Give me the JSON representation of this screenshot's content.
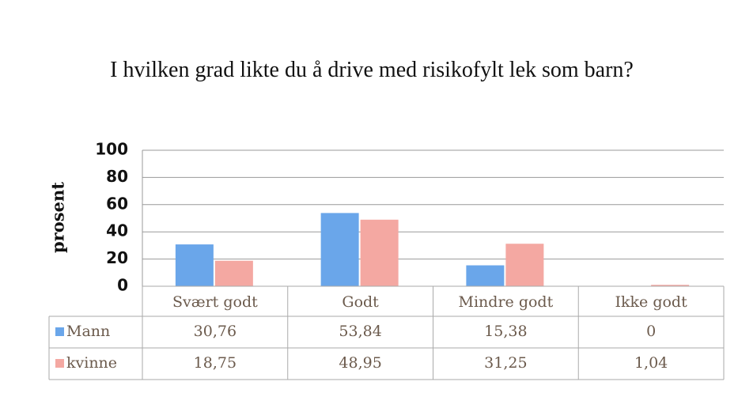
{
  "chart_data": {
    "type": "bar",
    "title": "I hvilken grad likte du å drive med risikofylt lek som barn?",
    "ylabel": "prosent",
    "categories": [
      "Svært godt",
      "Godt",
      "Mindre godt",
      "Ikke godt"
    ],
    "series": [
      {
        "name": "Mann",
        "color": "#6aa6ea",
        "values": [
          30.76,
          53.84,
          15.38,
          0
        ],
        "value_labels": [
          "30,76",
          "53,84",
          "15,38",
          "0"
        ]
      },
      {
        "name": "kvinne",
        "color": "#f4a8a2",
        "values": [
          18.75,
          48.95,
          31.25,
          1.04
        ],
        "value_labels": [
          "18,75",
          "48,95",
          "31,25",
          "1,04"
        ]
      }
    ],
    "ylim": [
      0,
      100
    ],
    "yticks": [
      0,
      20,
      40,
      60,
      80,
      100
    ],
    "grid": true,
    "data_table": true
  }
}
